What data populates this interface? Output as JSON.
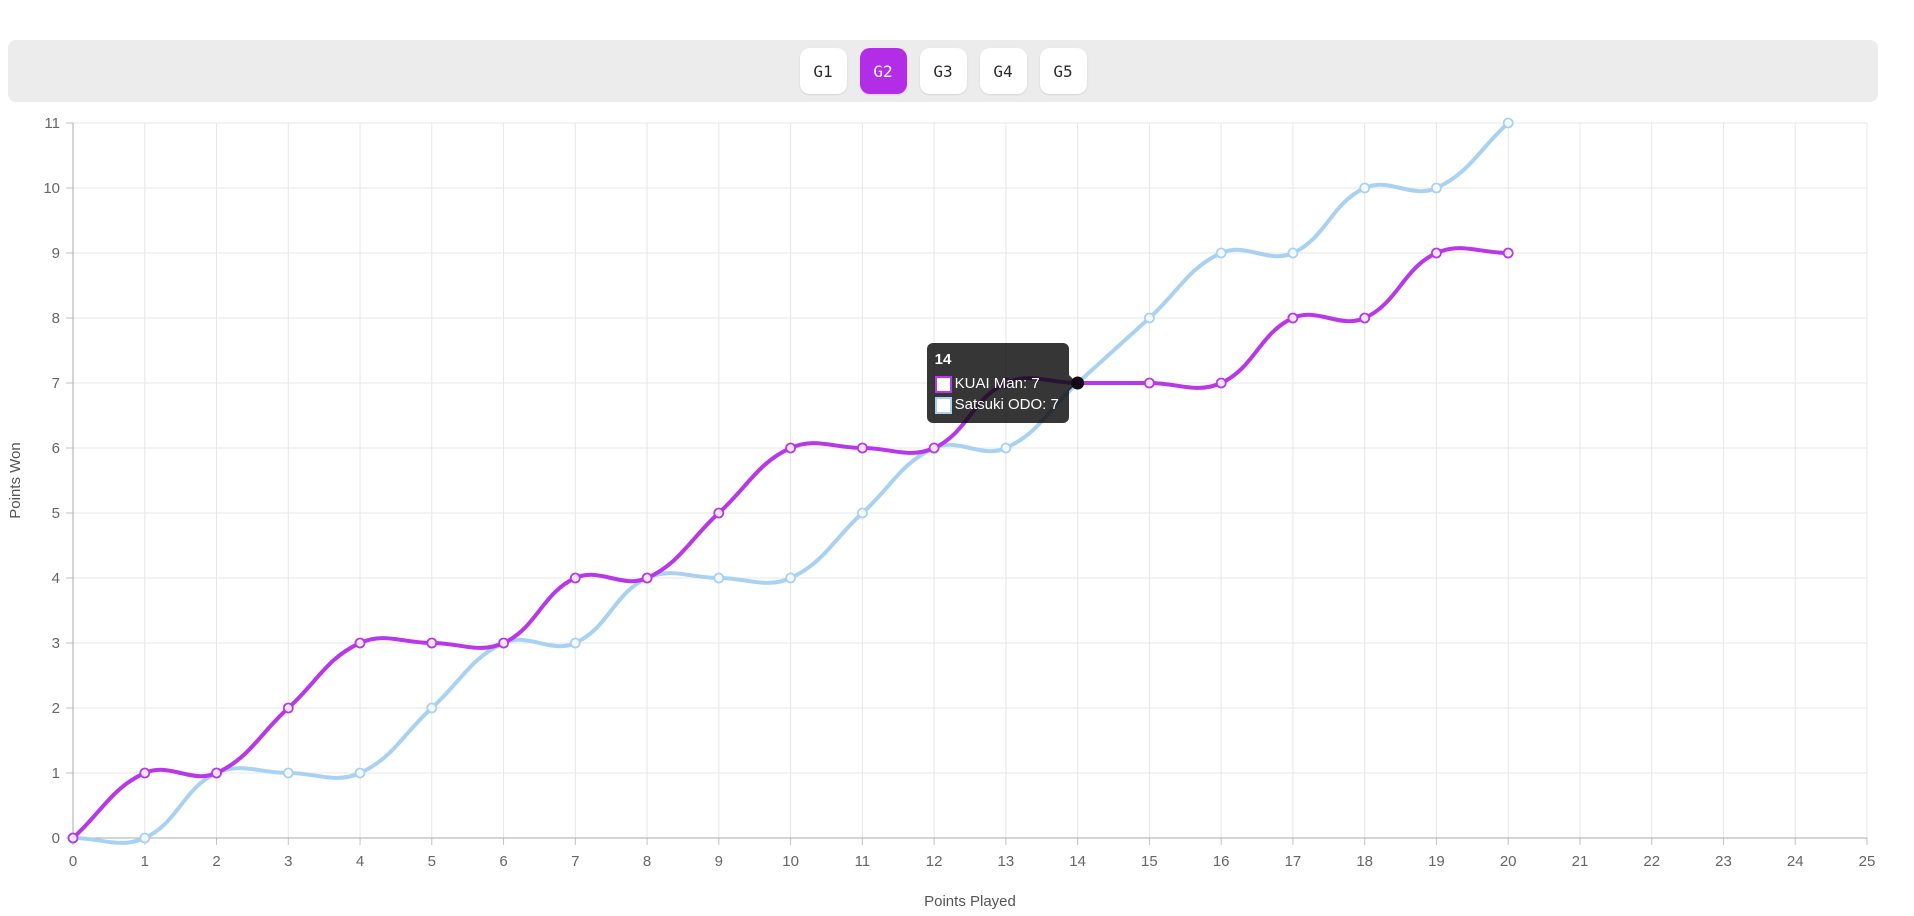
{
  "tabs": {
    "accent_color": "#b32ce8",
    "items": [
      {
        "label": "G1",
        "active": false
      },
      {
        "label": "G2",
        "active": true
      },
      {
        "label": "G3",
        "active": false
      },
      {
        "label": "G4",
        "active": false
      },
      {
        "label": "G5",
        "active": false
      }
    ]
  },
  "chart_data": {
    "type": "line",
    "title": "",
    "xlabel": "Points Played",
    "ylabel": "Points Won",
    "xlim": [
      0,
      25
    ],
    "ylim": [
      0,
      11
    ],
    "grid": true,
    "x_ticks": [
      0,
      1,
      2,
      3,
      4,
      5,
      6,
      7,
      8,
      9,
      10,
      11,
      12,
      13,
      14,
      15,
      16,
      17,
      18,
      19,
      20,
      21,
      22,
      23,
      24,
      25
    ],
    "y_ticks": [
      0,
      1,
      2,
      3,
      4,
      5,
      6,
      7,
      8,
      9,
      10,
      11
    ],
    "x": [
      0,
      1,
      2,
      3,
      4,
      5,
      6,
      7,
      8,
      9,
      10,
      11,
      12,
      13,
      14,
      15,
      16,
      17,
      18,
      19,
      20
    ],
    "series": [
      {
        "name": "KUAI Man",
        "color": "#b837e8",
        "values": [
          0,
          1,
          1,
          2,
          3,
          3,
          3,
          4,
          4,
          5,
          6,
          6,
          6,
          7,
          7,
          7,
          7,
          8,
          8,
          9,
          9
        ]
      },
      {
        "name": "Satsuki ODO",
        "color": "#a9d2f2",
        "values": [
          0,
          0,
          1,
          1,
          1,
          2,
          3,
          3,
          4,
          4,
          4,
          5,
          6,
          6,
          7,
          8,
          9,
          9,
          10,
          10,
          11
        ]
      }
    ],
    "tooltip": {
      "title": "14",
      "items": [
        {
          "label": "KUAI Man: 7",
          "color": "#b837e8"
        },
        {
          "label": "Satsuki ODO: 7",
          "color": "#a9d2f2"
        }
      ],
      "point": {
        "x": 14,
        "y": 7
      }
    }
  }
}
